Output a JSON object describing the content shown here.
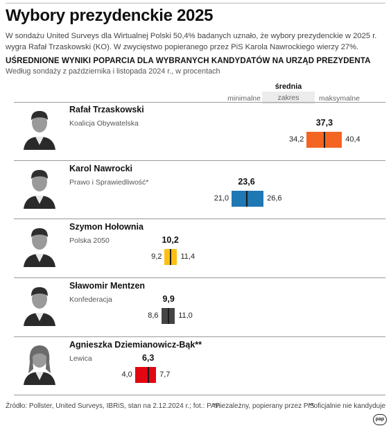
{
  "title": "Wybory prezydenckie 2025",
  "lead": "W sondażu United Surveys dla Wirtualnej Polski 50,4% badanych uznało, że wybory prezydenckie w 2025 r. wygra Rafał Trzaskowski (KO). W zwycięstwo popieranego przez PiS Karola Nawrockiego wierzy 27%.",
  "subhead": "UŚREDNIONE WYNIKI POPARCIA DLA WYBRANYCH KANDYDATÓW NA URZĄD PREZYDENTA",
  "subnote": "Według sondaży z października i listopada 2024 r., w procentach",
  "legend": {
    "avg": "średnia",
    "min": "minimalne",
    "range": "zakres",
    "max": "maksymalne"
  },
  "colors": {
    "trzaskowski": "#f26522",
    "nawrocki": "#1f77b4",
    "holownia": "#fdc010",
    "mentzen": "#444444",
    "biejat": "#e30613"
  },
  "chart_data": {
    "type": "range-bar",
    "units": "%",
    "candidates": [
      {
        "name": "Rafał Trzaskowski",
        "party": "Koalicja Obywatelska",
        "min": 34.2,
        "avg": 37.3,
        "max": 40.4,
        "min_label": "34,2",
        "avg_label": "37,3",
        "max_label": "40,4",
        "color": "#f26522"
      },
      {
        "name": "Karol Nawrocki",
        "party": "Prawo i Sprawiedliwość*",
        "min": 21.0,
        "avg": 23.6,
        "max": 26.6,
        "min_label": "21,0",
        "avg_label": "23,6",
        "max_label": "26,6",
        "color": "#1f77b4"
      },
      {
        "name": "Szymon Hołownia",
        "party": "Polska 2050",
        "min": 9.2,
        "avg": 10.2,
        "max": 11.4,
        "min_label": "9,2",
        "avg_label": "10,2",
        "max_label": "11,4",
        "color": "#fdc010"
      },
      {
        "name": "Sławomir Mentzen",
        "party": "Konfederacja",
        "min": 8.6,
        "avg": 9.9,
        "max": 11.0,
        "min_label": "8,6",
        "avg_label": "9,9",
        "max_label": "11,0",
        "color": "#444444"
      },
      {
        "name": "Agnieszka Dziemianowicz-Bąk**",
        "party": "Lewica",
        "min": 4.0,
        "avg": 6.3,
        "max": 7.7,
        "min_label": "4,0",
        "avg_label": "6,3",
        "max_label": "7,7",
        "color": "#e30613"
      }
    ]
  },
  "footer": {
    "source": "Źródło: Pollster, United Surveys, IBRiS, stan na 2.12.2024 r.; fot.: PAP",
    "note1": "*niezależny, popierany przez PiS",
    "note2": "**oficjalnie nie kandyduje"
  },
  "logo": "pap"
}
